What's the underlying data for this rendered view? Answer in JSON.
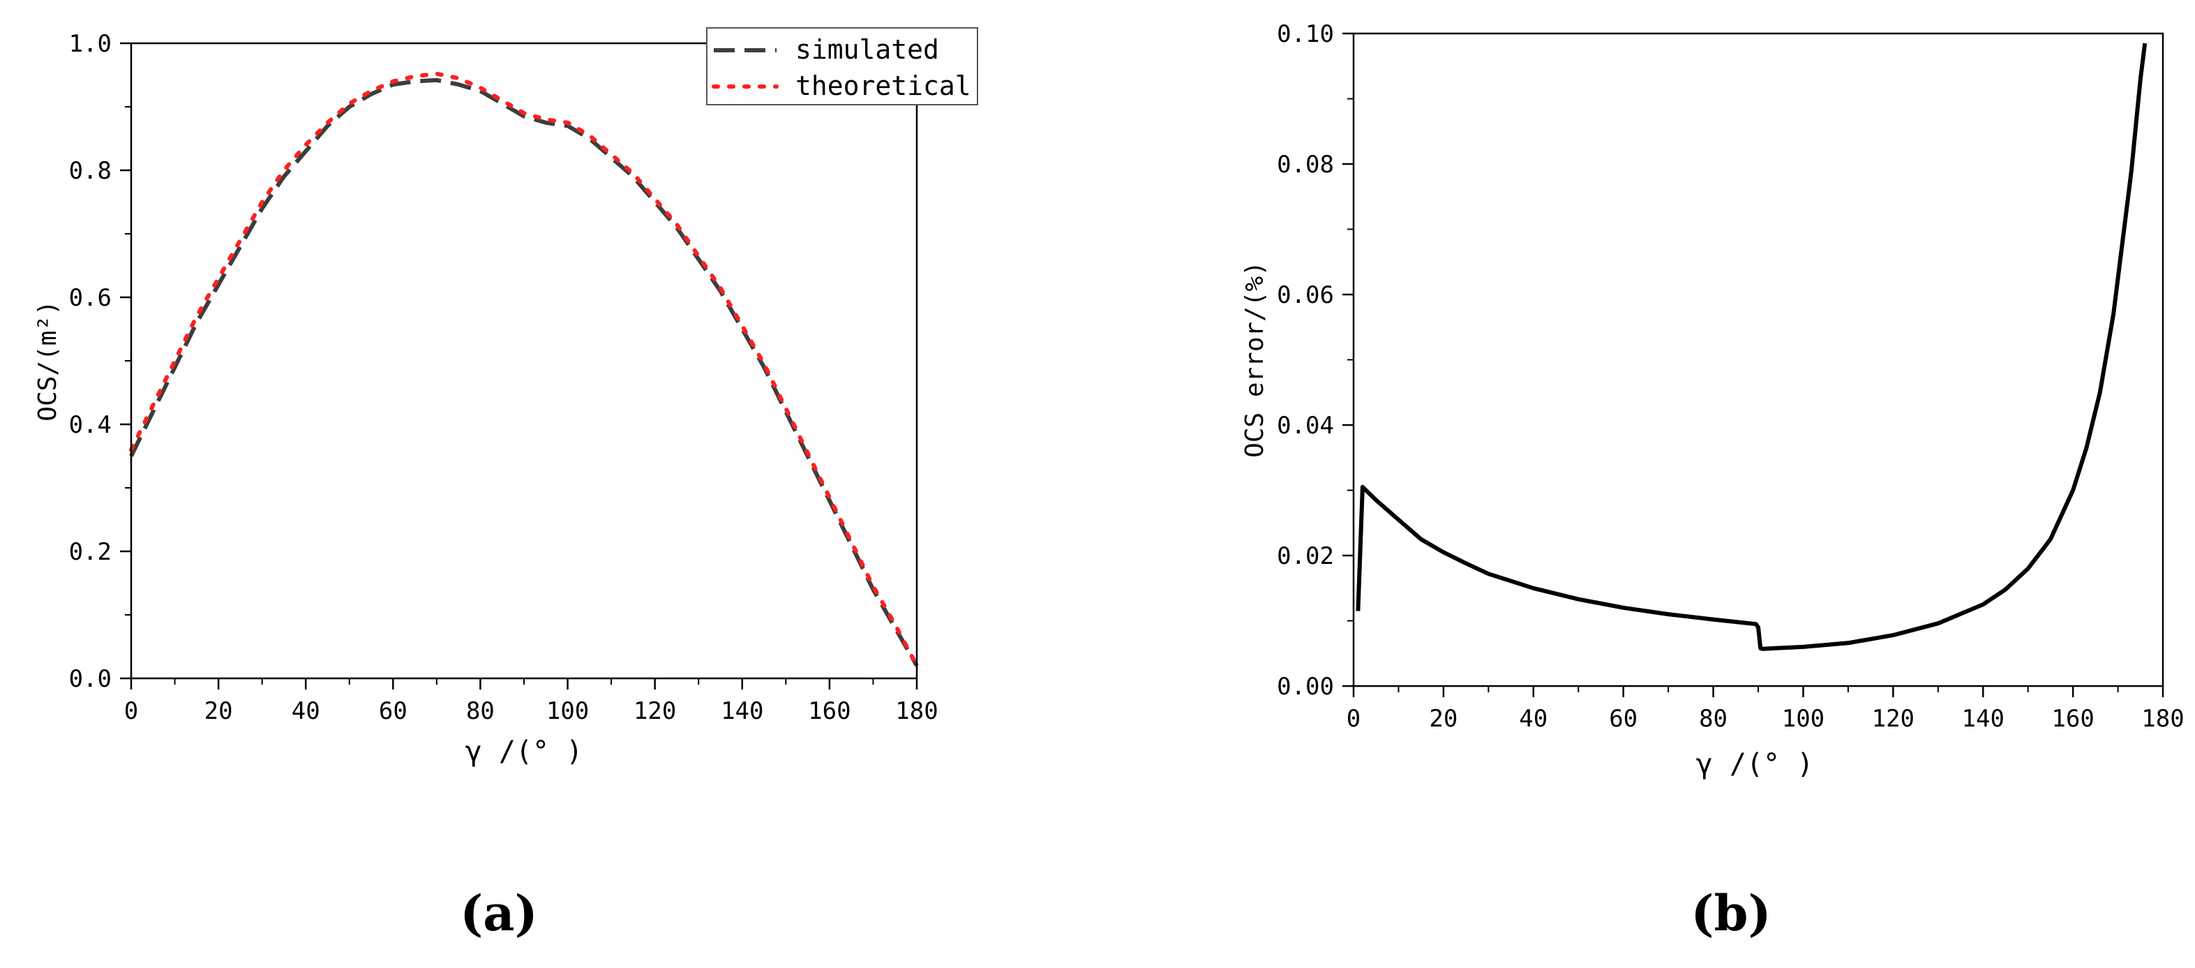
{
  "panels": [
    {
      "label": "(a)"
    },
    {
      "label": "(b)"
    }
  ],
  "colors": {
    "simulated": "#3d3d3d",
    "theoretical": "#ff2020",
    "error": "#000000",
    "axis": "#000000"
  },
  "chart_data": [
    {
      "type": "line",
      "title": "",
      "xlabel": "γ /(° )",
      "ylabel": "OCS/(m²)",
      "xlim": [
        0,
        180
      ],
      "ylim": [
        0,
        1.0
      ],
      "xticks": [
        "0",
        "20",
        "40",
        "60",
        "80",
        "100",
        "120",
        "140",
        "160",
        "180"
      ],
      "yticks": [
        "0.0",
        "0.2",
        "0.4",
        "0.6",
        "0.8",
        "1.0"
      ],
      "grid": false,
      "legend": "top-right",
      "series": [
        {
          "name": "simulated",
          "style": "dashed",
          "x": [
            0,
            5,
            10,
            15,
            20,
            25,
            30,
            35,
            40,
            45,
            50,
            55,
            60,
            65,
            70,
            75,
            80,
            85,
            90,
            95,
            100,
            105,
            110,
            115,
            120,
            125,
            130,
            135,
            140,
            145,
            150,
            155,
            160,
            165,
            170,
            175,
            180
          ],
          "y": [
            0.35,
            0.42,
            0.49,
            0.56,
            0.62,
            0.68,
            0.74,
            0.79,
            0.83,
            0.87,
            0.9,
            0.92,
            0.935,
            0.94,
            0.942,
            0.935,
            0.925,
            0.905,
            0.885,
            0.875,
            0.87,
            0.85,
            0.82,
            0.79,
            0.75,
            0.71,
            0.66,
            0.61,
            0.55,
            0.49,
            0.42,
            0.35,
            0.28,
            0.21,
            0.14,
            0.08,
            0.02
          ]
        },
        {
          "name": "theoretical",
          "style": "dotted",
          "x": [
            0,
            5,
            10,
            15,
            20,
            25,
            30,
            35,
            40,
            45,
            50,
            55,
            60,
            65,
            70,
            75,
            80,
            85,
            90,
            95,
            100,
            105,
            110,
            115,
            120,
            125,
            130,
            135,
            140,
            145,
            150,
            155,
            160,
            165,
            170,
            175,
            180
          ],
          "y": [
            0.36,
            0.43,
            0.5,
            0.57,
            0.63,
            0.69,
            0.75,
            0.8,
            0.84,
            0.875,
            0.905,
            0.925,
            0.94,
            0.948,
            0.952,
            0.945,
            0.93,
            0.91,
            0.89,
            0.88,
            0.875,
            0.855,
            0.825,
            0.795,
            0.755,
            0.715,
            0.665,
            0.615,
            0.555,
            0.495,
            0.425,
            0.355,
            0.285,
            0.215,
            0.145,
            0.085,
            0.02
          ]
        }
      ]
    },
    {
      "type": "line",
      "title": "",
      "xlabel": "γ /(° )",
      "ylabel": "OCS error/(%)",
      "xlim": [
        0,
        180
      ],
      "ylim": [
        0,
        0.1
      ],
      "xticks": [
        "0",
        "20",
        "40",
        "60",
        "80",
        "100",
        "120",
        "140",
        "160",
        "180"
      ],
      "yticks": [
        "0.00",
        "0.02",
        "0.04",
        "0.06",
        "0.08",
        "0.10"
      ],
      "grid": false,
      "series": [
        {
          "style": "solid",
          "x": [
            1,
            2,
            5,
            10,
            15,
            20,
            25,
            30,
            40,
            50,
            60,
            70,
            80,
            89.5,
            90,
            90.5,
            91,
            100,
            110,
            120,
            130,
            140,
            145,
            150,
            155,
            160,
            163,
            166,
            169,
            171,
            173,
            174,
            175,
            176
          ],
          "y": [
            0.0115,
            0.0305,
            0.0285,
            0.0255,
            0.0225,
            0.0205,
            0.0188,
            0.0172,
            0.015,
            0.0133,
            0.012,
            0.011,
            0.0102,
            0.0095,
            0.009,
            0.0058,
            0.0057,
            0.006,
            0.0066,
            0.0078,
            0.0096,
            0.0125,
            0.0148,
            0.018,
            0.0225,
            0.03,
            0.0365,
            0.045,
            0.057,
            0.068,
            0.079,
            0.086,
            0.093,
            0.0985
          ]
        }
      ]
    }
  ]
}
